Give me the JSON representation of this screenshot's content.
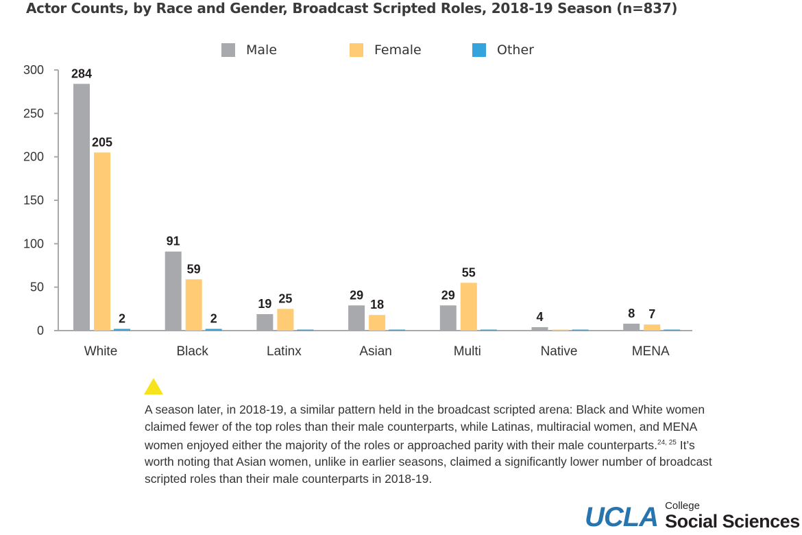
{
  "chart_data": {
    "type": "bar",
    "title": "Actor Counts, by Race and Gender, Broadcast Scripted Roles, 2018-19 Season (n=837)",
    "categories": [
      "White",
      "Black",
      "Latinx",
      "Asian",
      "Multi",
      "Native",
      "MENA"
    ],
    "series": [
      {
        "name": "Male",
        "color": "#a7a9ac",
        "values": [
          284,
          91,
          19,
          29,
          29,
          4,
          8
        ],
        "labels": [
          "284",
          "91",
          "19",
          "29",
          "29",
          "4",
          "8"
        ]
      },
      {
        "name": "Female",
        "color": "#ffcb75",
        "values": [
          205,
          59,
          25,
          18,
          55,
          0,
          7
        ],
        "labels": [
          "205",
          "59",
          "25",
          "18",
          "55",
          "",
          "7"
        ]
      },
      {
        "name": "Other",
        "color": "#36a4dc",
        "values": [
          2,
          2,
          0,
          0,
          0,
          0,
          0
        ],
        "labels": [
          "2",
          "2",
          "",
          "",
          "",
          "",
          ""
        ]
      }
    ],
    "ylim": [
      0,
      300
    ],
    "yticks": [
      0,
      50,
      100,
      150,
      200,
      250,
      300
    ],
    "legend": "top-center",
    "grid": false
  },
  "caption": {
    "marker_color": "#f7e31b",
    "text_before": "A season later, in 2018-19, a similar pattern held in the broadcast scripted arena: Black and White women claimed fewer of the top roles than their male counterparts, while Latinas, multiracial women, and MENA women enjoyed either the majority of the roles or approached parity with their male counterparts.",
    "footnote": "24, 25",
    "text_after": " It’s worth noting that Asian women, unlike in earlier seasons, claimed a significantly lower number of broadcast scripted roles than their male counterparts in 2018-19."
  },
  "logo": {
    "ucla": "UCLA",
    "college": "College",
    "social_sciences": "Social Sciences"
  }
}
